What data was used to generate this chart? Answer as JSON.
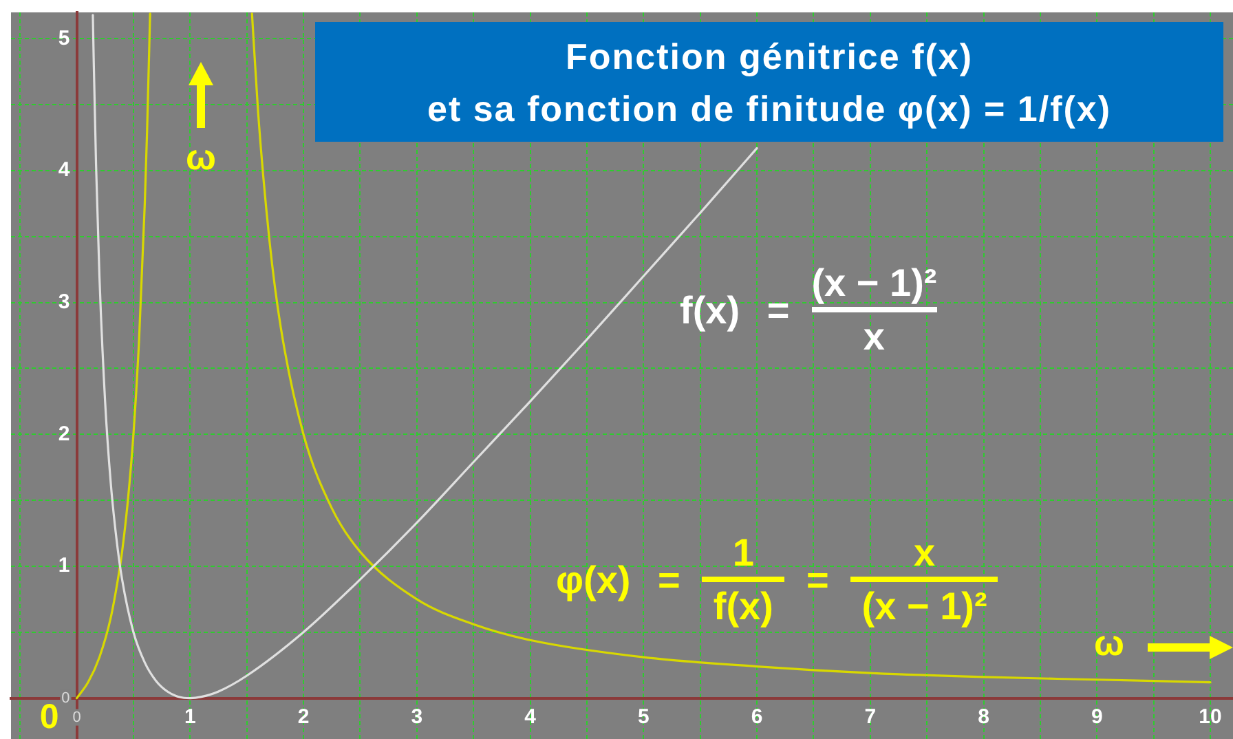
{
  "chart_data": {
    "type": "line",
    "title": "Fonction génitrice f(x)\net sa fonction de finitude φ(x) = 1/f(x)",
    "xlabel": "ω",
    "ylabel": "ω",
    "series": [
      {
        "color": "#e0e0e0",
        "x": [
          0.142,
          0.15,
          0.17,
          0.2,
          0.25,
          0.3,
          0.35,
          0.4,
          0.5,
          0.6,
          0.7,
          0.8,
          0.9,
          1,
          1.1,
          1.25,
          1.5,
          2,
          2.5,
          3,
          3.5,
          4,
          4.5,
          5,
          5.5,
          6
        ],
        "values": [
          5.18,
          4.82,
          4.05,
          3.2,
          2.25,
          1.63,
          1.21,
          0.9,
          0.5,
          0.27,
          0.13,
          0.05,
          0.01,
          0,
          0.01,
          0.05,
          0.17,
          0.5,
          0.9,
          1.33,
          1.79,
          2.25,
          2.72,
          3.2,
          3.68,
          4.17
        ]
      },
      {
        "color": "#d8d800",
        "x": [
          0,
          0.1,
          0.2,
          0.3,
          0.38,
          0.4,
          0.45,
          0.5,
          0.55,
          0.6,
          0.62,
          0.647,
          1,
          1.546,
          1.6,
          1.7,
          1.8,
          2,
          2.25,
          2.5,
          3,
          3.5,
          4,
          5,
          6,
          7,
          8,
          9,
          10
        ],
        "values": [
          0,
          0.12,
          0.31,
          0.61,
          0.99,
          1.11,
          1.49,
          2,
          2.72,
          3.75,
          4.29,
          5.19,
          null,
          5.19,
          4.44,
          3.47,
          2.81,
          2,
          1.44,
          1.11,
          0.75,
          0.56,
          0.44,
          0.31,
          0.24,
          0.19,
          0.16,
          0.14,
          0.12
        ]
      }
    ],
    "xlim": [
      -0.58,
      10.2
    ],
    "xticks": [
      {
        "value": -0.5,
        "label": null
      },
      0,
      {
        "value": 0.5,
        "label": null
      },
      1,
      {
        "value": 1.5,
        "label": null
      },
      2,
      {
        "value": 2.5,
        "label": null
      },
      3,
      {
        "value": 3.5,
        "label": null
      },
      4,
      {
        "value": 4.5,
        "label": null
      },
      5,
      {
        "value": 5.5,
        "label": null
      },
      6,
      {
        "value": 6.5,
        "label": null
      },
      7,
      {
        "value": 7.5,
        "label": null
      },
      8,
      {
        "value": 8.5,
        "label": null
      },
      9,
      {
        "value": 9.5,
        "label": null
      },
      10
    ],
    "ylim": [
      -0.31,
      5.2
    ],
    "yticks": [
      0,
      {
        "value": 0.5,
        "label": null
      },
      1,
      {
        "value": 1.5,
        "label": null
      },
      2,
      {
        "value": 2.5,
        "label": null
      },
      3,
      {
        "value": 3.5,
        "label": null
      },
      4,
      {
        "value": 4.5,
        "label": null
      },
      5
    ],
    "grid": true,
    "annotations": [
      "f(x) =",
      "(x − 1)²",
      "x",
      "φ(x) =",
      "1",
      "f(x)",
      "=",
      "x",
      "(x − 1)²",
      {
        "text": "0",
        "x": 0,
        "y": 0
      }
    ]
  }
}
